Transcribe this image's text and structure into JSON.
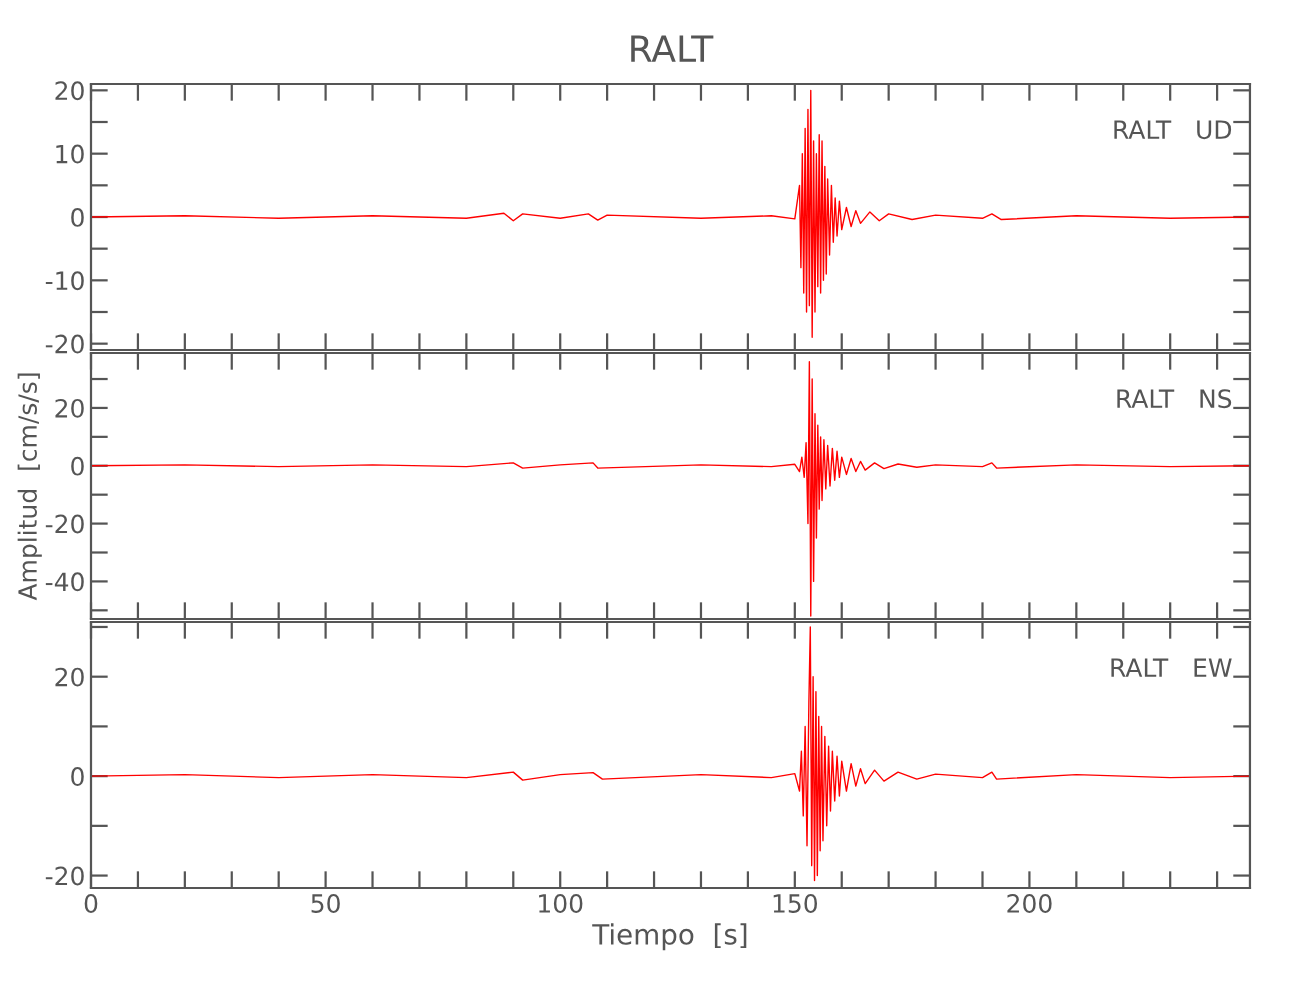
{
  "chart_data": [
    {
      "type": "line",
      "title": "RALT",
      "annotations": [
        "RALT   UD"
      ],
      "tick_labels": "y",
      "grid": false,
      "marker": "none",
      "line_style": "solid",
      "xlim": [
        0,
        247
      ],
      "ylim": [
        -21,
        21
      ],
      "xticks": [
        {
          "value": 0,
          "label": null
        },
        {
          "value": 10,
          "label": null
        },
        {
          "value": 20,
          "label": null
        },
        {
          "value": 30,
          "label": null
        },
        {
          "value": 40,
          "label": null
        },
        {
          "value": 50,
          "label": null
        },
        {
          "value": 60,
          "label": null
        },
        {
          "value": 70,
          "label": null
        },
        {
          "value": 80,
          "label": null
        },
        {
          "value": 90,
          "label": null
        },
        {
          "value": 100,
          "label": null
        },
        {
          "value": 110,
          "label": null
        },
        {
          "value": 120,
          "label": null
        },
        {
          "value": 130,
          "label": null
        },
        {
          "value": 140,
          "label": null
        },
        {
          "value": 150,
          "label": null
        },
        {
          "value": 160,
          "label": null
        },
        {
          "value": 170,
          "label": null
        },
        {
          "value": 180,
          "label": null
        },
        {
          "value": 190,
          "label": null
        },
        {
          "value": 200,
          "label": null
        },
        {
          "value": 210,
          "label": null
        },
        {
          "value": 220,
          "label": null
        },
        {
          "value": 230,
          "label": null
        },
        {
          "value": 240,
          "label": null
        }
      ],
      "yticks": [
        -20,
        {
          "value": -15,
          "label": null
        },
        -10,
        {
          "value": -5,
          "label": null
        },
        0,
        {
          "value": 5,
          "label": null
        },
        10,
        {
          "value": 15,
          "label": null
        },
        20
      ],
      "series": [
        {
          "color": "#ff0000",
          "x": [
            0,
            20,
            40,
            60,
            80,
            88,
            90,
            92,
            100,
            106,
            108,
            110,
            130,
            145,
            150,
            151.0,
            151.3,
            151.6,
            151.9,
            152.2,
            152.5,
            152.8,
            153.1,
            153.4,
            153.7,
            154.0,
            154.3,
            154.6,
            154.9,
            155.2,
            155.5,
            155.8,
            156.1,
            156.4,
            156.7,
            157.0,
            157.4,
            157.8,
            158.2,
            158.6,
            159.0,
            159.5,
            160,
            161,
            162,
            163,
            164,
            166,
            168,
            170,
            175,
            180,
            190,
            192,
            194,
            210,
            230,
            247
          ],
          "values": [
            0,
            0.2,
            -0.2,
            0.2,
            -0.2,
            0.6,
            -0.6,
            0.5,
            -0.2,
            0.5,
            -0.5,
            0.3,
            -0.2,
            0.2,
            -0.3,
            5,
            -8,
            10,
            -12,
            14,
            -15,
            17,
            -14,
            20,
            -19,
            12,
            -15,
            10,
            -11,
            13,
            -12,
            12,
            -10,
            8,
            -9,
            6,
            -6,
            5,
            -4,
            3,
            -3,
            2.5,
            -2,
            1.5,
            -1.5,
            1,
            -1,
            0.8,
            -0.6,
            0.5,
            -0.4,
            0.3,
            -0.2,
            0.5,
            -0.4,
            0.2,
            -0.2,
            0
          ]
        }
      ]
    },
    {
      "type": "line",
      "ylabel": "Amplitud  [cm/s/s]",
      "annotations": [
        "RALT   NS"
      ],
      "tick_labels": "y",
      "grid": false,
      "marker": "none",
      "line_style": "solid",
      "xlim": [
        0,
        247
      ],
      "ylim": [
        -53,
        39
      ],
      "xticks": [
        {
          "value": 0,
          "label": null
        },
        {
          "value": 10,
          "label": null
        },
        {
          "value": 20,
          "label": null
        },
        {
          "value": 30,
          "label": null
        },
        {
          "value": 40,
          "label": null
        },
        {
          "value": 50,
          "label": null
        },
        {
          "value": 60,
          "label": null
        },
        {
          "value": 70,
          "label": null
        },
        {
          "value": 80,
          "label": null
        },
        {
          "value": 90,
          "label": null
        },
        {
          "value": 100,
          "label": null
        },
        {
          "value": 110,
          "label": null
        },
        {
          "value": 120,
          "label": null
        },
        {
          "value": 130,
          "label": null
        },
        {
          "value": 140,
          "label": null
        },
        {
          "value": 150,
          "label": null
        },
        {
          "value": 160,
          "label": null
        },
        {
          "value": 170,
          "label": null
        },
        {
          "value": 180,
          "label": null
        },
        {
          "value": 190,
          "label": null
        },
        {
          "value": 200,
          "label": null
        },
        {
          "value": 210,
          "label": null
        },
        {
          "value": 220,
          "label": null
        },
        {
          "value": 230,
          "label": null
        },
        {
          "value": 240,
          "label": null
        }
      ],
      "yticks": [
        {
          "value": -50,
          "label": null
        },
        -40,
        {
          "value": -30,
          "label": null
        },
        -20,
        {
          "value": -10,
          "label": null
        },
        0,
        {
          "value": 10,
          "label": null
        },
        20,
        {
          "value": 30,
          "label": null
        }
      ],
      "series": [
        {
          "color": "#ff0000",
          "x": [
            0,
            20,
            40,
            60,
            80,
            90,
            92,
            100,
            107,
            108,
            130,
            145,
            150,
            151.0,
            151.5,
            152.0,
            152.4,
            152.8,
            153.1,
            153.4,
            153.7,
            154.0,
            154.3,
            154.6,
            154.9,
            155.2,
            155.5,
            155.8,
            156.2,
            156.6,
            157.0,
            157.5,
            158,
            158.5,
            159,
            159.5,
            160,
            161,
            162,
            163,
            164,
            165,
            167,
            169,
            172,
            176,
            180,
            190,
            192,
            193,
            210,
            230,
            247
          ],
          "values": [
            0,
            0.3,
            -0.3,
            0.3,
            -0.3,
            1,
            -0.8,
            0.3,
            1,
            -0.8,
            0.3,
            -0.3,
            0.5,
            -2,
            3,
            -4,
            8,
            -20,
            36,
            -52,
            30,
            -40,
            18,
            -25,
            14,
            -15,
            10,
            -12,
            9,
            -8,
            7,
            -7,
            6,
            -5,
            5,
            -4,
            3,
            -3,
            2.5,
            -2,
            1.5,
            -1.5,
            1,
            -1,
            0.6,
            -0.5,
            0.3,
            -0.3,
            1,
            -0.8,
            0.3,
            -0.3,
            0
          ]
        }
      ]
    },
    {
      "type": "line",
      "xlabel": "Tiempo  [s]",
      "annotations": [
        "RALT   EW"
      ],
      "grid": false,
      "marker": "none",
      "line_style": "solid",
      "xlim": [
        0,
        247
      ],
      "ylim": [
        -22.5,
        31
      ],
      "xticks": [
        0,
        {
          "value": 10,
          "label": null
        },
        {
          "value": 20,
          "label": null
        },
        {
          "value": 30,
          "label": null
        },
        {
          "value": 40,
          "label": null
        },
        50,
        {
          "value": 60,
          "label": null
        },
        {
          "value": 70,
          "label": null
        },
        {
          "value": 80,
          "label": null
        },
        {
          "value": 90,
          "label": null
        },
        100,
        {
          "value": 110,
          "label": null
        },
        {
          "value": 120,
          "label": null
        },
        {
          "value": 130,
          "label": null
        },
        {
          "value": 140,
          "label": null
        },
        150,
        {
          "value": 160,
          "label": null
        },
        {
          "value": 170,
          "label": null
        },
        {
          "value": 180,
          "label": null
        },
        {
          "value": 190,
          "label": null
        },
        200,
        {
          "value": 210,
          "label": null
        },
        {
          "value": 220,
          "label": null
        },
        {
          "value": 230,
          "label": null
        },
        {
          "value": 240,
          "label": null
        }
      ],
      "yticks": [
        -20,
        {
          "value": -10,
          "label": null
        },
        0,
        {
          "value": 10,
          "label": null
        },
        20,
        {
          "value": 30,
          "label": null
        }
      ],
      "series": [
        {
          "color": "#ff0000",
          "x": [
            0,
            20,
            40,
            60,
            80,
            90,
            92,
            100,
            107,
            109,
            130,
            145,
            150,
            151.0,
            151.4,
            151.8,
            152.2,
            152.6,
            153.0,
            153.3,
            153.6,
            153.9,
            154.2,
            154.5,
            154.8,
            155.1,
            155.4,
            155.7,
            156.0,
            156.4,
            156.8,
            157.2,
            157.6,
            158,
            158.5,
            159,
            159.5,
            160,
            161,
            162,
            163,
            164,
            165,
            167,
            169,
            172,
            176,
            180,
            190,
            192,
            193,
            210,
            230,
            247
          ],
          "values": [
            0,
            0.3,
            -0.3,
            0.3,
            -0.3,
            0.8,
            -0.8,
            0.3,
            0.7,
            -0.6,
            0.3,
            -0.3,
            0.5,
            -3,
            5,
            -8,
            10,
            -14,
            15,
            30,
            -18,
            20,
            -21,
            17,
            -20,
            12,
            -15,
            10,
            -13,
            8,
            -10,
            6,
            -7,
            5,
            -5,
            4,
            -4,
            3,
            -3,
            2.5,
            -2,
            1.5,
            -1.5,
            1.2,
            -1,
            0.8,
            -0.6,
            0.4,
            -0.3,
            0.8,
            -0.6,
            0.3,
            -0.3,
            0
          ]
        }
      ]
    }
  ]
}
